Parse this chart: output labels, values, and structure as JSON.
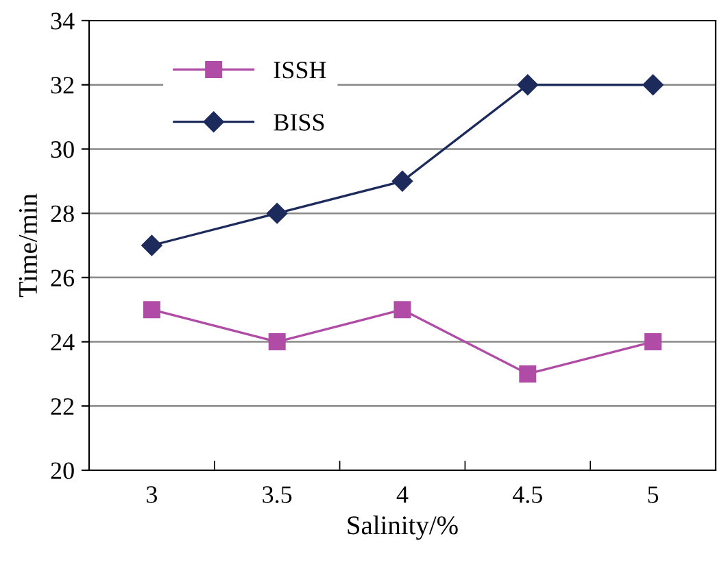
{
  "chart_data": {
    "type": "line",
    "xlabel": "Salinity/%",
    "ylabel": "Time/min",
    "categories": [
      "3",
      "3.5",
      "4",
      "4.5",
      "5"
    ],
    "series": [
      {
        "name": "ISSH",
        "color": "#b04ca6",
        "values": [
          25,
          24,
          25,
          23,
          24
        ],
        "marker": "square"
      },
      {
        "name": "BISS",
        "color": "#1c2a5c",
        "values": [
          27,
          28,
          29,
          32,
          32
        ],
        "marker": "diamond"
      }
    ],
    "ylim": [
      20,
      34
    ],
    "yticks": [
      20,
      22,
      24,
      26,
      28,
      30,
      32,
      34
    ],
    "grid": "y",
    "legend": "top left",
    "line_style": "solid"
  }
}
